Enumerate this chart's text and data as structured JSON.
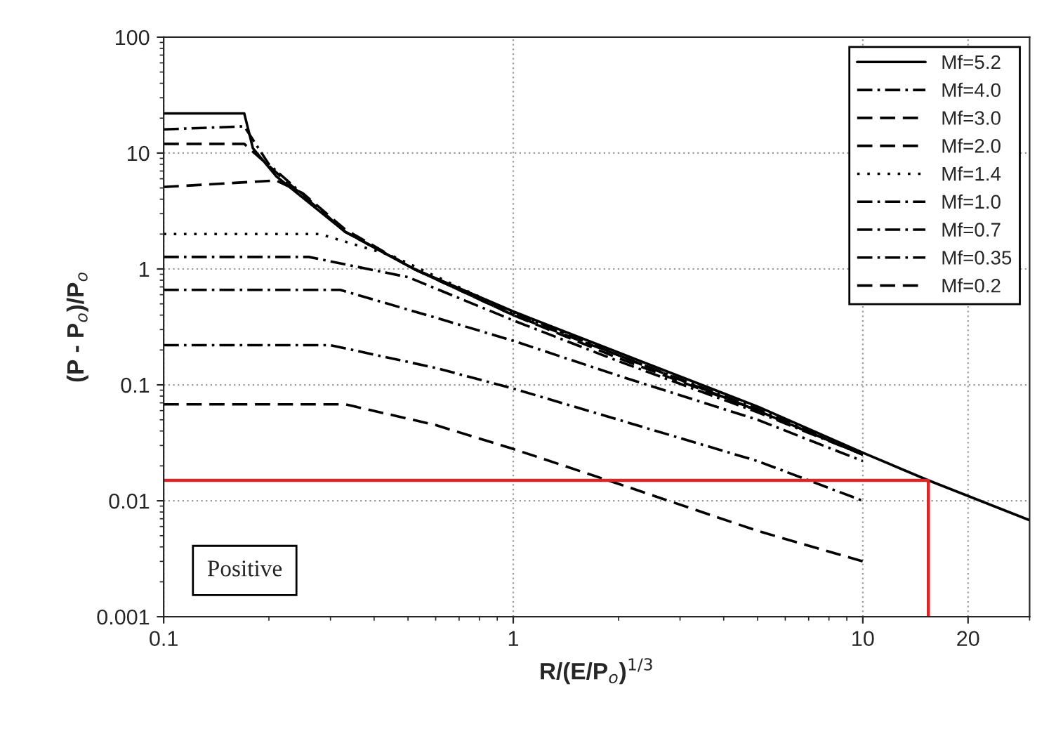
{
  "chart_data": {
    "type": "line",
    "xlabel": "R/(E/P$_{o}$)$^{1/3}$",
    "ylabel": "(P - P$_{o}$)/P$_{o}$",
    "log": "xy",
    "xlim": [
      0.1,
      30
    ],
    "ylim": [
      0.001,
      100
    ],
    "xticks": [
      0.1,
      1,
      10,
      20
    ],
    "yticks": [
      0.001,
      0.01,
      0.1,
      1,
      10,
      100
    ],
    "grid": true,
    "legend": "top right",
    "annotations": [
      "Positive"
    ],
    "series": [
      {
        "name": "Mf=5.2",
        "color": "#000000",
        "line_style": "solid",
        "x": [
          0.1,
          0.17,
          0.18,
          0.21,
          0.33,
          0.52,
          1,
          2,
          5,
          10,
          15.4,
          30
        ],
        "values": [
          22,
          22,
          11,
          6.3,
          2.1,
          1.0,
          0.43,
          0.19,
          0.065,
          0.026,
          0.015,
          0.0068
        ]
      },
      {
        "name": "Mf=4.0",
        "color": "#000000",
        "line_style": "dashdot",
        "x": [
          0.1,
          0.17,
          0.2,
          0.33,
          0.52,
          1,
          2,
          5,
          10
        ],
        "values": [
          16,
          17,
          8,
          2.1,
          1.0,
          0.42,
          0.18,
          0.062,
          0.025
        ]
      },
      {
        "name": "Mf=3.0",
        "color": "#000000",
        "line_style": "dashed",
        "x": [
          0.1,
          0.17,
          0.22,
          0.33,
          0.52,
          1,
          2,
          5,
          10
        ],
        "values": [
          12,
          12,
          6,
          2.1,
          1.0,
          0.4,
          0.18,
          0.06,
          0.025
        ]
      },
      {
        "name": "Mf=2.0",
        "color": "#000000",
        "line_style": "dashed",
        "x": [
          0.1,
          0.21,
          0.25,
          0.33,
          0.52,
          1,
          2,
          5,
          10
        ],
        "values": [
          5.1,
          5.8,
          4.5,
          2.2,
          1.0,
          0.4,
          0.17,
          0.06,
          0.025
        ]
      },
      {
        "name": "Mf=1.4",
        "color": "#000000",
        "line_style": "dotted",
        "x": [
          0.1,
          0.28,
          0.45,
          1,
          2,
          5,
          10
        ],
        "values": [
          2.0,
          2.0,
          1.3,
          0.42,
          0.18,
          0.06,
          0.025
        ]
      },
      {
        "name": "Mf=1.0",
        "color": "#000000",
        "line_style": "dashdot",
        "x": [
          0.1,
          0.26,
          0.5,
          1,
          2,
          5,
          10
        ],
        "values": [
          1.27,
          1.27,
          0.85,
          0.36,
          0.16,
          0.058,
          0.025
        ]
      },
      {
        "name": "Mf=0.7",
        "color": "#000000",
        "line_style": "dashdot",
        "x": [
          0.1,
          0.32,
          0.6,
          1,
          2,
          5,
          10
        ],
        "values": [
          0.66,
          0.66,
          0.38,
          0.24,
          0.12,
          0.05,
          0.022
        ]
      },
      {
        "name": "Mf=0.35",
        "color": "#000000",
        "line_style": "dashdot",
        "x": [
          0.1,
          0.3,
          0.6,
          1,
          2,
          5,
          10
        ],
        "values": [
          0.22,
          0.22,
          0.14,
          0.093,
          0.05,
          0.022,
          0.01
        ]
      },
      {
        "name": "Mf=0.2",
        "color": "#000000",
        "line_style": "dashed",
        "x": [
          0.1,
          0.33,
          0.6,
          1,
          2,
          5,
          10
        ],
        "values": [
          0.068,
          0.068,
          0.045,
          0.028,
          0.014,
          0.0055,
          0.003
        ]
      },
      {
        "color": "#d62728",
        "line_style": "solid",
        "x": [
          0.1,
          15.4,
          15.4
        ],
        "values": [
          0.015,
          0.015,
          0.001
        ]
      }
    ]
  }
}
